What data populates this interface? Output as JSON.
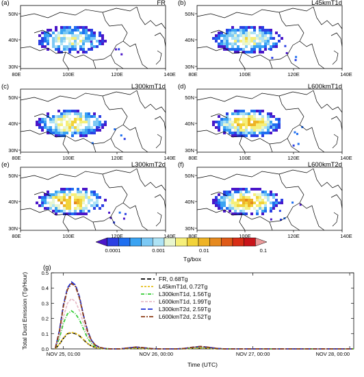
{
  "panels": [
    {
      "label": "(a)",
      "title": "FR"
    },
    {
      "label": "(b)",
      "title": "L45kmT1d"
    },
    {
      "label": "(c)",
      "title": "L300kmT1d"
    },
    {
      "label": "(d)",
      "title": "L600kmT1d"
    },
    {
      "label": "(e)",
      "title": "L300kmT2d"
    },
    {
      "label": "(f)",
      "title": "L600kmT2d"
    }
  ],
  "map_axes": {
    "lon_ticks": [
      "80E",
      "100E",
      "120E",
      "140E"
    ],
    "lat_ticks": [
      "50N",
      "40N",
      "30N"
    ]
  },
  "colorbar": {
    "unit": "Tg/box",
    "tick_labels": [
      "0.0001",
      "0.001",
      "0.01",
      "0.1"
    ],
    "colors": [
      "#4a16c9",
      "#2b3fe3",
      "#1f6ff0",
      "#3aa3f2",
      "#7cc9f5",
      "#aee3f5",
      "#e9f6cf",
      "#f6ef7a",
      "#f2d33a",
      "#eeb325",
      "#e68a1f",
      "#de5a18",
      "#d82e16",
      "#c8141a",
      "#ea9a9a"
    ]
  },
  "chart_data": {
    "type": "line",
    "panel_label": "(g)",
    "xlabel": "Time (UTC)",
    "ylabel": "Total Dust Emission (Tg/Hour)",
    "x_tick_labels": [
      "NOV 25, 01:00",
      "NOV 26, 00:00",
      "NOV 27, 00:00",
      "NOV 28, 00:00"
    ],
    "x_tick_hours": [
      0,
      23,
      47,
      71
    ],
    "xlim": [
      -3,
      72
    ],
    "ylim": [
      0,
      0.5
    ],
    "y_ticks": [
      0,
      0.1,
      0.2,
      0.3,
      0.4,
      0.5
    ],
    "x_hours": [
      -2,
      -1,
      0,
      1,
      2,
      3,
      4,
      5,
      6,
      7,
      8,
      9,
      10,
      11,
      12,
      14,
      16,
      18,
      20,
      22,
      24,
      26,
      28,
      30,
      32,
      34,
      36,
      38,
      40,
      42,
      44,
      46,
      48,
      50,
      52,
      54,
      56,
      58,
      60,
      62,
      64,
      66,
      68,
      70,
      72
    ],
    "series": [
      {
        "name": "FR, 0.68Tg",
        "color": "#000000",
        "values": [
          0.002,
          0.03,
          0.07,
          0.1,
          0.105,
          0.1,
          0.085,
          0.06,
          0.035,
          0.018,
          0.008,
          0.003,
          0.001,
          0,
          0,
          0,
          0.002,
          0.004,
          0.002,
          0,
          0,
          0,
          0,
          0.001,
          0.004,
          0.006,
          0.004,
          0.001,
          0,
          0,
          0,
          0,
          0,
          0,
          0,
          0,
          0,
          0,
          0,
          0,
          0,
          0,
          0,
          0,
          0
        ]
      },
      {
        "name": "L45kmT1d, 0.72Tg",
        "color": "#e6c01e",
        "values": [
          0.002,
          0.032,
          0.072,
          0.103,
          0.108,
          0.103,
          0.088,
          0.062,
          0.036,
          0.019,
          0.008,
          0.003,
          0.001,
          0,
          0,
          0,
          0.002,
          0.004,
          0.002,
          0,
          0,
          0,
          0,
          0.001,
          0.004,
          0.006,
          0.004,
          0.001,
          0,
          0,
          0,
          0,
          0,
          0,
          0,
          0,
          0,
          0,
          0,
          0,
          0,
          0,
          0,
          0,
          0
        ]
      },
      {
        "name": "L300kmT1d, 1.56Tg",
        "color": "#33cc33",
        "values": [
          0.004,
          0.07,
          0.17,
          0.23,
          0.25,
          0.23,
          0.19,
          0.13,
          0.07,
          0.035,
          0.015,
          0.006,
          0.002,
          0.001,
          0,
          0,
          0.004,
          0.008,
          0.005,
          0.001,
          0,
          0,
          0,
          0.002,
          0.007,
          0.01,
          0.007,
          0.002,
          0,
          0,
          0,
          0,
          0,
          0,
          0,
          0,
          0,
          0,
          0,
          0,
          0,
          0,
          0,
          0,
          0
        ]
      },
      {
        "name": "L600kmT1d, 1.99Tg",
        "color": "#e8bcc8",
        "values": [
          0.005,
          0.09,
          0.21,
          0.3,
          0.33,
          0.31,
          0.25,
          0.17,
          0.09,
          0.045,
          0.02,
          0.008,
          0.003,
          0.001,
          0,
          0,
          0.005,
          0.01,
          0.006,
          0.001,
          0,
          0,
          0,
          0.003,
          0.009,
          0.013,
          0.009,
          0.003,
          0,
          0,
          0,
          0,
          0,
          0,
          0,
          0,
          0,
          0,
          0,
          0,
          0,
          0,
          0,
          0,
          0
        ]
      },
      {
        "name": "L300kmT2d, 2.59Tg",
        "color": "#1e2fd6",
        "values": [
          0.006,
          0.12,
          0.29,
          0.4,
          0.44,
          0.42,
          0.34,
          0.22,
          0.12,
          0.055,
          0.024,
          0.01,
          0.004,
          0.001,
          0,
          0,
          0.006,
          0.012,
          0.007,
          0.002,
          0,
          0,
          0,
          0.003,
          0.011,
          0.016,
          0.011,
          0.003,
          0,
          0,
          0,
          0,
          0,
          0,
          0,
          0,
          0,
          0,
          0,
          0,
          0,
          0,
          0,
          0,
          0
        ]
      },
      {
        "name": "L600kmT2d, 2.52Tg",
        "color": "#8b3a14",
        "values": [
          0.006,
          0.115,
          0.28,
          0.39,
          0.43,
          0.41,
          0.33,
          0.215,
          0.115,
          0.053,
          0.023,
          0.01,
          0.004,
          0.001,
          0,
          0,
          0.006,
          0.012,
          0.007,
          0.002,
          0,
          0,
          0,
          0.003,
          0.011,
          0.016,
          0.011,
          0.003,
          0,
          0,
          0,
          0,
          0,
          0,
          0,
          0,
          0,
          0,
          0,
          0,
          0,
          0,
          0,
          0,
          0
        ]
      }
    ]
  }
}
